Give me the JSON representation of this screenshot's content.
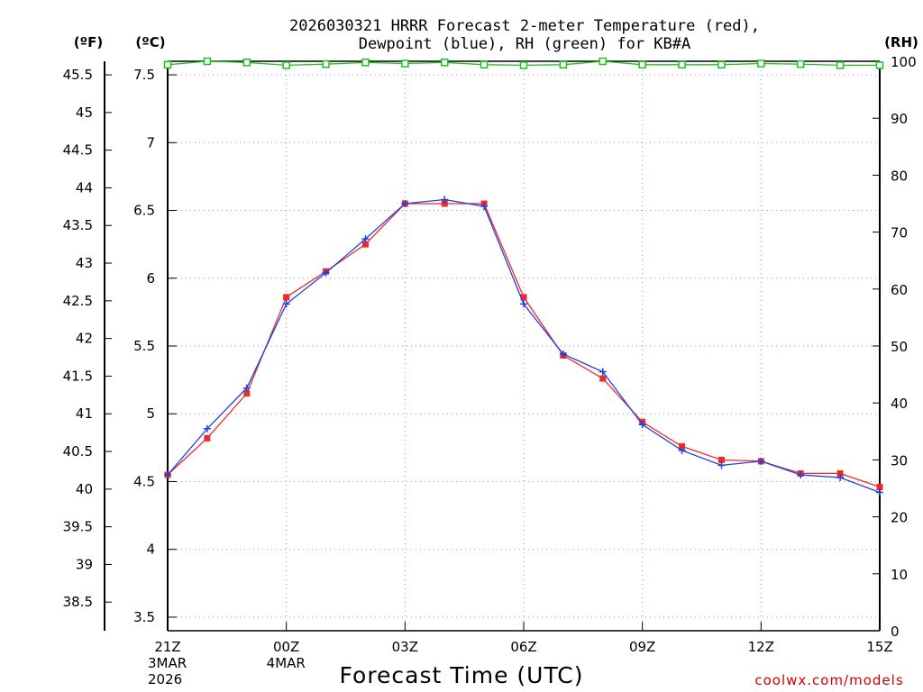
{
  "chart_data": {
    "type": "line",
    "title_line1": "2026030321 HRRR Forecast 2-meter Temperature (red),",
    "title_line2": "Dewpoint (blue), RH (green) for KB#A",
    "xlabel": "Forecast Time (UTC)",
    "credit": "coolwx.com/models",
    "units": {
      "fahrenheit": "(ºF)",
      "celsius": "(ºC)",
      "rh": "(RH)"
    },
    "x_ticks": [
      {
        "hour": 0,
        "label": "21Z",
        "sub1": "3MAR",
        "sub2": "2026"
      },
      {
        "hour": 3,
        "label": "00Z",
        "sub1": "4MAR",
        "sub2": ""
      },
      {
        "hour": 6,
        "label": "03Z",
        "sub1": "",
        "sub2": ""
      },
      {
        "hour": 9,
        "label": "06Z",
        "sub1": "",
        "sub2": ""
      },
      {
        "hour": 12,
        "label": "09Z",
        "sub1": "",
        "sub2": ""
      },
      {
        "hour": 15,
        "label": "12Z",
        "sub1": "",
        "sub2": ""
      },
      {
        "hour": 18,
        "label": "15Z",
        "sub1": "",
        "sub2": ""
      }
    ],
    "xlim": [
      0,
      18
    ],
    "ylim_c": [
      3.4,
      7.6
    ],
    "y_ticks_c": [
      "3.5",
      "4",
      "4.5",
      "5",
      "5.5",
      "6",
      "6.5",
      "7",
      "7.5"
    ],
    "y_ticks_f": [
      "38.5",
      "39",
      "39.5",
      "40",
      "40.5",
      "41",
      "41.5",
      "42",
      "42.5",
      "43",
      "43.5",
      "44",
      "44.5",
      "45",
      "45.5"
    ],
    "ylim_rh": [
      0,
      100
    ],
    "y_ticks_rh": [
      "0",
      "10",
      "20",
      "30",
      "40",
      "50",
      "60",
      "70",
      "80",
      "90",
      "100"
    ],
    "hours": [
      0,
      1,
      2,
      3,
      4,
      5,
      6,
      7,
      8,
      9,
      10,
      11,
      12,
      13,
      14,
      15,
      16,
      17,
      18
    ],
    "series": [
      {
        "name": "Temperature",
        "color": "#ee2a2a",
        "marker": "square",
        "values": [
          4.55,
          4.82,
          5.15,
          5.86,
          6.05,
          6.25,
          6.55,
          6.55,
          6.55,
          5.86,
          5.43,
          5.26,
          4.94,
          4.76,
          4.66,
          4.65,
          4.56,
          4.56,
          4.46
        ]
      },
      {
        "name": "Dewpoint",
        "color": "#2040e0",
        "marker": "plus",
        "values": [
          4.55,
          4.89,
          5.19,
          5.81,
          6.04,
          6.29,
          6.55,
          6.58,
          6.53,
          5.81,
          5.44,
          5.31,
          4.92,
          4.73,
          4.62,
          4.65,
          4.55,
          4.53,
          4.42
        ]
      },
      {
        "name": "RH",
        "color": "#20c020",
        "marker": "open-square",
        "values": [
          99.4,
          100,
          99.8,
          99.3,
          99.5,
          99.8,
          99.6,
          99.8,
          99.4,
          99.3,
          99.4,
          100,
          99.4,
          99.4,
          99.4,
          99.6,
          99.5,
          99.3,
          99.3
        ]
      }
    ]
  }
}
